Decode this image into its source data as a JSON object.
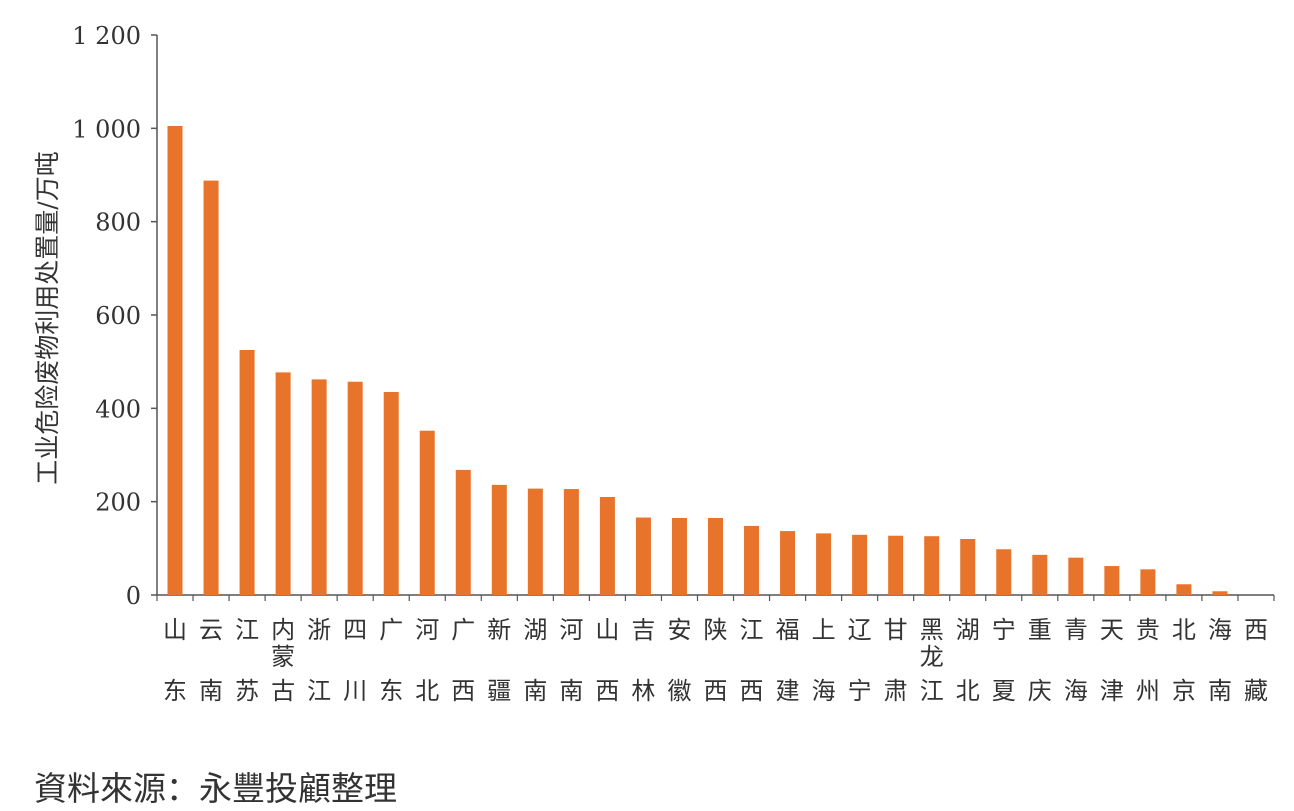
{
  "chart_data": {
    "type": "bar",
    "title": "",
    "xlabel": "",
    "ylabel": "工业危险废物利用处置量/万吨",
    "ylim": [
      0,
      1200
    ],
    "yticks": [
      0,
      200,
      400,
      600,
      800,
      1000,
      1200
    ],
    "ytick_labels": [
      "0",
      "200",
      "400",
      "600",
      "800",
      "1 000",
      "1 200"
    ],
    "grid": false,
    "legend": "none",
    "bar_color": "#E8732A",
    "categories": [
      [
        "山",
        "东"
      ],
      [
        "云",
        "南"
      ],
      [
        "江",
        "苏"
      ],
      [
        "内",
        "蒙",
        "古"
      ],
      [
        "浙",
        "江"
      ],
      [
        "四",
        "川"
      ],
      [
        "广",
        "东"
      ],
      [
        "河",
        "北"
      ],
      [
        "广",
        "西"
      ],
      [
        "新",
        "疆"
      ],
      [
        "湖",
        "南"
      ],
      [
        "河",
        "南"
      ],
      [
        "山",
        "西"
      ],
      [
        "吉",
        "林"
      ],
      [
        "安",
        "徽"
      ],
      [
        "陕",
        "西"
      ],
      [
        "江",
        "西"
      ],
      [
        "福",
        "建"
      ],
      [
        "上",
        "海"
      ],
      [
        "辽",
        "宁"
      ],
      [
        "甘",
        "肃"
      ],
      [
        "黑",
        "龙",
        "江"
      ],
      [
        "湖",
        "北"
      ],
      [
        "宁",
        "夏"
      ],
      [
        "重",
        "庆"
      ],
      [
        "青",
        "海"
      ],
      [
        "天",
        "津"
      ],
      [
        "贵",
        "州"
      ],
      [
        "北",
        "京"
      ],
      [
        "海",
        "南"
      ],
      [
        "西",
        "藏"
      ]
    ],
    "values": [
      1005,
      888,
      525,
      477,
      462,
      457,
      435,
      352,
      268,
      236,
      228,
      227,
      210,
      166,
      165,
      165,
      148,
      137,
      132,
      129,
      127,
      126,
      120,
      98,
      86,
      80,
      62,
      55,
      23,
      8,
      0
    ]
  },
  "source_note": "資料來源：永豐投顧整理"
}
